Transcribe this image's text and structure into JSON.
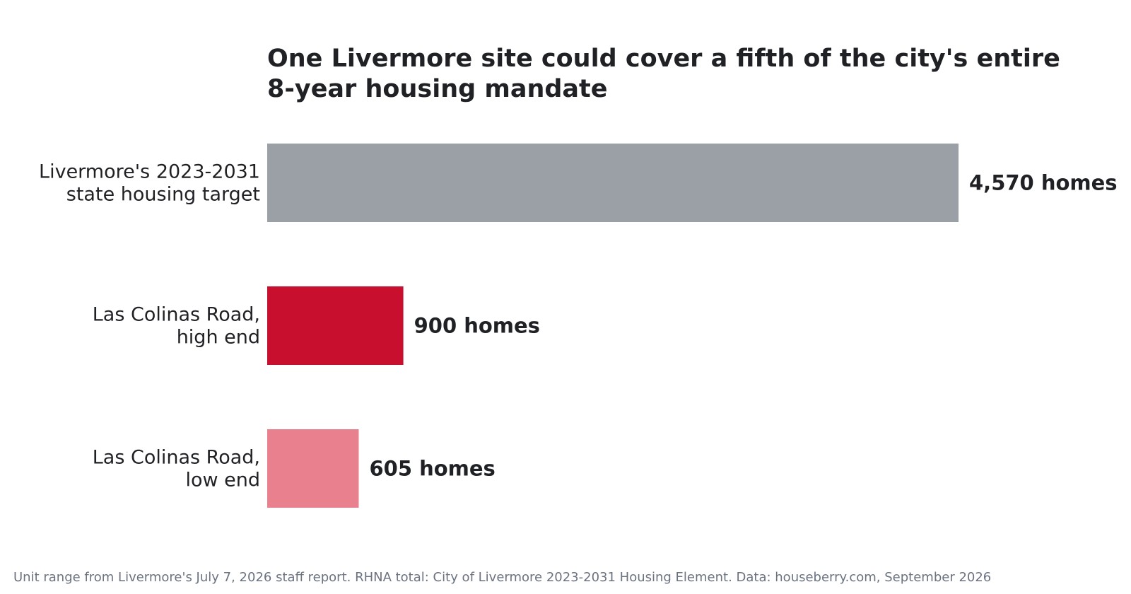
{
  "chart_data": {
    "type": "bar",
    "orientation": "horizontal",
    "title": [
      "One Livermore site could cover a fifth of the city's entire",
      "8-year housing mandate"
    ],
    "categories": [
      [
        "Livermore's 2023-2031",
        "state housing target"
      ],
      [
        "Las Colinas Road,",
        "high end"
      ],
      [
        "Las Colinas Road,",
        "low end"
      ]
    ],
    "values": [
      4570,
      900,
      605
    ],
    "value_labels": [
      "4,570 homes",
      "900 homes",
      "605 homes"
    ],
    "colors": [
      "#9aa0a6",
      "#c8102e",
      "#e8808e"
    ],
    "xlim": [
      0,
      4570
    ],
    "xlabel": "",
    "ylabel": "",
    "grid": false,
    "legend": "none"
  },
  "footnote": "Unit range from Livermore's July 7, 2026 staff report. RHNA total: City of Livermore 2023-2031 Housing Element.  Data: houseberry.com, September 2026"
}
